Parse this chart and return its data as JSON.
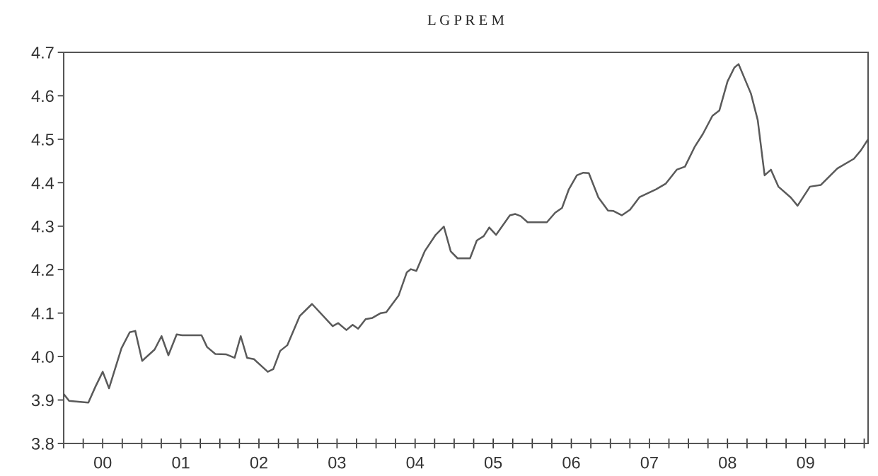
{
  "chart_data": {
    "type": "line",
    "title": "L G P R E M",
    "x": [
      1999.5,
      1999.569,
      1999.64,
      1999.816,
      1999.905,
      2000.0,
      2000.081,
      2000.24,
      2000.346,
      2000.417,
      2000.505,
      2000.664,
      2000.753,
      2000.841,
      2000.947,
      2001.018,
      2001.265,
      2001.336,
      2001.442,
      2001.583,
      2001.689,
      2001.767,
      2001.848,
      2001.936,
      2002.113,
      2002.184,
      2002.272,
      2002.363,
      2002.522,
      2002.68,
      2002.944,
      2003.014,
      2003.12,
      2003.2,
      2003.27,
      2003.366,
      2003.454,
      2003.56,
      2003.63,
      2003.788,
      2003.894,
      2003.946,
      2004.016,
      2004.122,
      2004.263,
      2004.368,
      2004.456,
      2004.544,
      2004.703,
      2004.79,
      2004.878,
      2004.949,
      2005.037,
      2005.213,
      2005.283,
      2005.353,
      2005.441,
      2005.687,
      2005.793,
      2005.881,
      2005.969,
      2006.071,
      2006.154,
      2006.224,
      2006.347,
      2006.47,
      2006.54,
      2006.646,
      2006.752,
      2006.875,
      2007.086,
      2007.21,
      2007.35,
      2007.455,
      2007.578,
      2007.684,
      2007.807,
      2007.895,
      2008.0,
      2008.088,
      2008.141,
      2008.3,
      2008.387,
      2008.475,
      2008.556,
      2008.651,
      2008.81,
      2008.897,
      2009.056,
      2009.196,
      2009.407,
      2009.618,
      2009.706,
      2009.8
    ],
    "series": [
      {
        "color": "#5a5a5a",
        "values": [
          3.914,
          3.898,
          3.897,
          3.894,
          3.93,
          3.965,
          3.927,
          4.019,
          4.056,
          4.059,
          3.99,
          4.016,
          4.047,
          4.003,
          4.051,
          4.049,
          4.049,
          4.022,
          4.006,
          4.005,
          3.997,
          4.047,
          3.997,
          3.994,
          3.965,
          3.971,
          4.013,
          4.026,
          4.093,
          4.121,
          4.07,
          4.077,
          4.061,
          4.073,
          4.064,
          4.086,
          4.089,
          4.1,
          4.102,
          4.14,
          4.194,
          4.201,
          4.197,
          4.242,
          4.28,
          4.299,
          4.242,
          4.226,
          4.226,
          4.267,
          4.277,
          4.297,
          4.28,
          4.325,
          4.328,
          4.323,
          4.309,
          4.309,
          4.331,
          4.342,
          4.385,
          4.417,
          4.423,
          4.422,
          4.366,
          4.336,
          4.335,
          4.325,
          4.338,
          4.367,
          4.385,
          4.398,
          4.43,
          4.437,
          4.482,
          4.512,
          4.554,
          4.566,
          4.633,
          4.665,
          4.673,
          4.605,
          4.544,
          4.417,
          4.43,
          4.391,
          4.366,
          4.347,
          4.391,
          4.395,
          4.433,
          4.455,
          4.474,
          4.5
        ]
      }
    ],
    "xlim": [
      1999.5,
      2009.8
    ],
    "xticks": [
      {
        "value": 1999.5,
        "label": null
      },
      {
        "value": 1999.75,
        "label": null
      },
      {
        "value": 2000,
        "label": "00"
      },
      {
        "value": 2000.25,
        "label": null
      },
      {
        "value": 2000.5,
        "label": null
      },
      {
        "value": 2000.75,
        "label": null
      },
      {
        "value": 2001,
        "label": "01"
      },
      {
        "value": 2001.25,
        "label": null
      },
      {
        "value": 2001.5,
        "label": null
      },
      {
        "value": 2001.75,
        "label": null
      },
      {
        "value": 2002,
        "label": "02"
      },
      {
        "value": 2002.25,
        "label": null
      },
      {
        "value": 2002.5,
        "label": null
      },
      {
        "value": 2002.75,
        "label": null
      },
      {
        "value": 2003,
        "label": "03"
      },
      {
        "value": 2003.25,
        "label": null
      },
      {
        "value": 2003.5,
        "label": null
      },
      {
        "value": 2003.75,
        "label": null
      },
      {
        "value": 2004,
        "label": "04"
      },
      {
        "value": 2004.25,
        "label": null
      },
      {
        "value": 2004.5,
        "label": null
      },
      {
        "value": 2004.75,
        "label": null
      },
      {
        "value": 2005,
        "label": "05"
      },
      {
        "value": 2005.25,
        "label": null
      },
      {
        "value": 2005.5,
        "label": null
      },
      {
        "value": 2005.75,
        "label": null
      },
      {
        "value": 2006,
        "label": "06"
      },
      {
        "value": 2006.25,
        "label": null
      },
      {
        "value": 2006.5,
        "label": null
      },
      {
        "value": 2006.75,
        "label": null
      },
      {
        "value": 2007,
        "label": "07"
      },
      {
        "value": 2007.25,
        "label": null
      },
      {
        "value": 2007.5,
        "label": null
      },
      {
        "value": 2007.75,
        "label": null
      },
      {
        "value": 2008,
        "label": "08"
      },
      {
        "value": 2008.25,
        "label": null
      },
      {
        "value": 2008.5,
        "label": null
      },
      {
        "value": 2008.75,
        "label": null
      },
      {
        "value": 2009,
        "label": "09"
      },
      {
        "value": 2009.25,
        "label": null
      },
      {
        "value": 2009.5,
        "label": null
      },
      {
        "value": 2009.75,
        "label": null
      }
    ],
    "ylim": [
      3.8,
      4.7
    ],
    "yticks": [
      {
        "value": 3.8,
        "label": "3.8"
      },
      {
        "value": 3.9,
        "label": "3.9"
      },
      {
        "value": 4.0,
        "label": "4.0"
      },
      {
        "value": 4.1,
        "label": "4.1"
      },
      {
        "value": 4.2,
        "label": "4.2"
      },
      {
        "value": 4.3,
        "label": "4.3"
      },
      {
        "value": 4.4,
        "label": "4.4"
      },
      {
        "value": 4.5,
        "label": "4.5"
      },
      {
        "value": 4.6,
        "label": "4.6"
      },
      {
        "value": 4.7,
        "label": "4.7"
      }
    ],
    "grid": false,
    "legend": false
  }
}
